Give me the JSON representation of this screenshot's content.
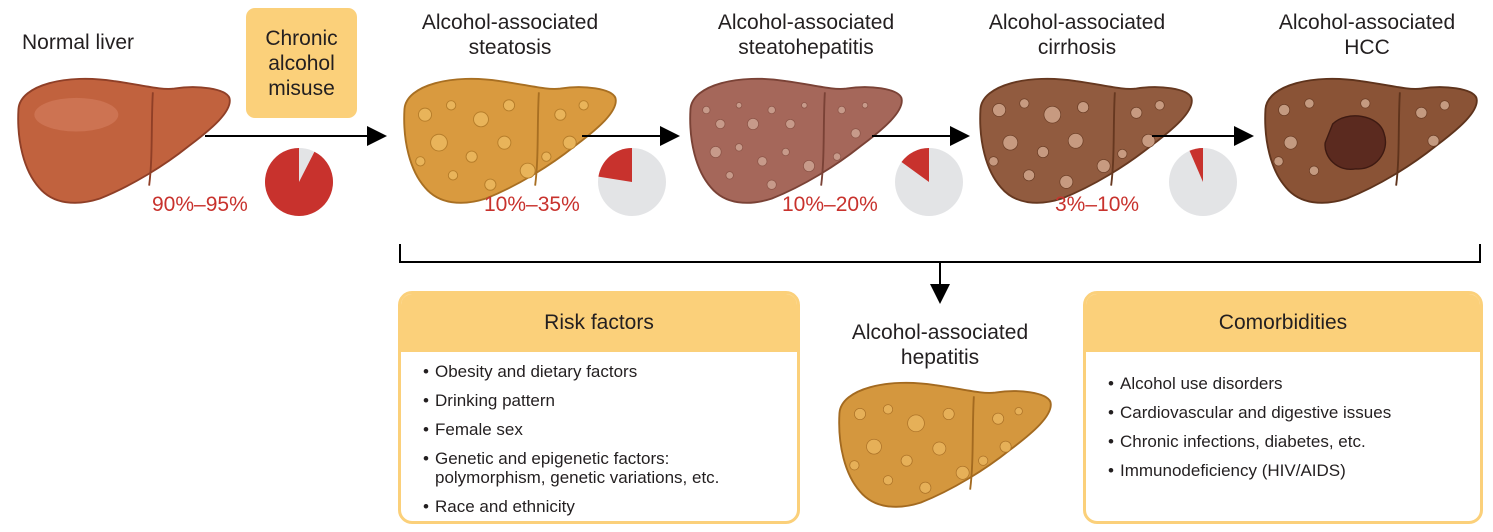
{
  "stages": [
    {
      "title": "Normal liver"
    },
    {
      "title": "Alcohol-associated\nsteatosis"
    },
    {
      "title": "Alcohol-associated\nsteatohepatitis"
    },
    {
      "title": "Alcohol-associated\ncirrhosis"
    },
    {
      "title": "Alcohol-associated\nHCC"
    }
  ],
  "cause": {
    "label": "Chronic\nalcohol\nmisuse"
  },
  "transitions": [
    {
      "label": "90%–95%",
      "fraction": 0.925
    },
    {
      "label": "10%–35%",
      "fraction": 0.225
    },
    {
      "label": "10%–20%",
      "fraction": 0.15
    },
    {
      "label": "3%–10%",
      "fraction": 0.065
    }
  ],
  "hepatitis": {
    "title": "Alcohol-associated\nhepatitis"
  },
  "risk_factors": {
    "title": "Risk factors",
    "items": [
      "Obesity and dietary factors",
      "Drinking pattern",
      "Female sex",
      "Genetic and epigenetic factors:\npolymorphism, genetic variations, etc.",
      "Race and ethnicity"
    ]
  },
  "comorbidities": {
    "title": "Comorbidities",
    "items": [
      "Alcohol use disorders",
      "Cardiovascular and digestive issues",
      "Chronic infections, diabetes, etc.",
      "Immunodeficiency (HIV/AIDS)"
    ]
  },
  "colors": {
    "accent": "#c8322d",
    "pie_bg": "#e3e4e6",
    "box": "#fbd07a",
    "liver_normal": "#c1623e",
    "liver_steatosis": "#d99a3f",
    "liver_steatohepatitis": "#a5675a",
    "liver_cirrhosis": "#915b3f",
    "liver_hcc": "#8a5336",
    "liver_hepatitis": "#d4973e"
  }
}
